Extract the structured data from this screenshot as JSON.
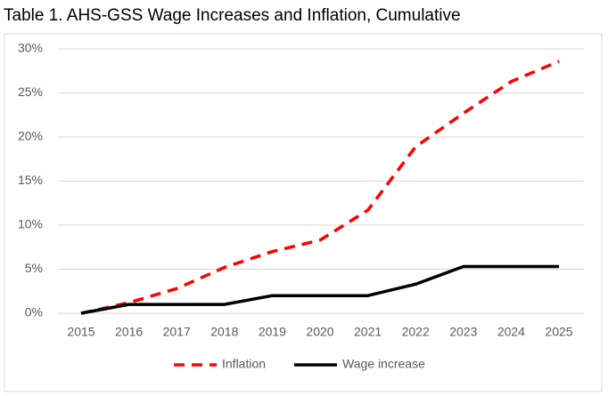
{
  "chart_data": {
    "type": "line",
    "title": "Table 1. AHS-GSS Wage Increases and Inflation, Cumulative",
    "categories": [
      "2015",
      "2016",
      "2017",
      "2018",
      "2019",
      "2020",
      "2021",
      "2022",
      "2023",
      "2024",
      "2025"
    ],
    "series": [
      {
        "name": "Inflation",
        "color": "#ff0000",
        "dashed": true,
        "values": [
          0,
          1.2,
          2.8,
          5.2,
          7.0,
          8.3,
          11.7,
          18.9,
          22.7,
          26.3,
          28.6
        ]
      },
      {
        "name": "Wage increase",
        "color": "#000000",
        "dashed": false,
        "values": [
          0,
          1,
          1,
          1,
          2,
          2,
          2,
          3.3,
          5.3,
          5.3,
          5.3
        ]
      }
    ],
    "ylim": [
      0,
      30
    ],
    "yticks": [
      {
        "value": 0,
        "label": "0%"
      },
      {
        "value": 5,
        "label": "5%"
      },
      {
        "value": 10,
        "label": "10%"
      },
      {
        "value": 15,
        "label": "15%"
      },
      {
        "value": 20,
        "label": "20%"
      },
      {
        "value": 25,
        "label": "25%"
      },
      {
        "value": 30,
        "label": "30%"
      }
    ],
    "grid": true,
    "legend": "bottom"
  }
}
